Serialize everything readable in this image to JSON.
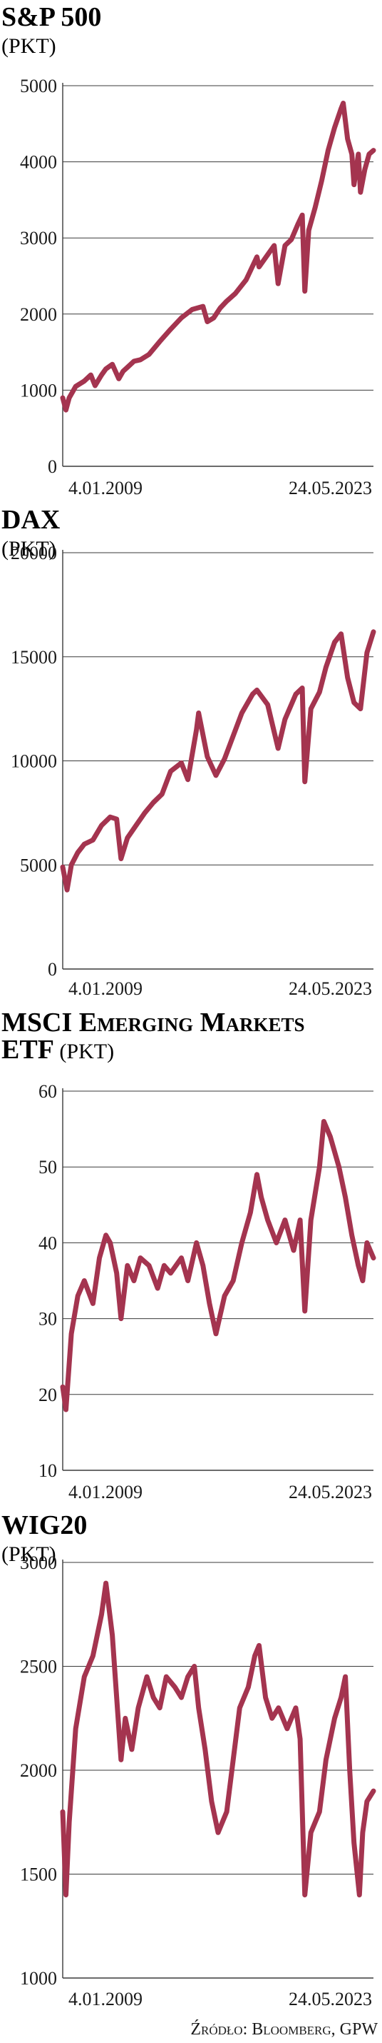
{
  "source": "Źródło: Bloomberg, GPW",
  "chart_data": [
    {
      "type": "line",
      "title": "S&P 500",
      "unit": "(PKT)",
      "x_start": "4.01.2009",
      "x_end": "24.05.2023",
      "x_range": [
        2009.0,
        2023.4
      ],
      "ylim": [
        0,
        5000
      ],
      "yticks": [
        0,
        1000,
        2000,
        3000,
        4000,
        5000
      ],
      "grid": true,
      "color": "#a4344f",
      "series": [
        {
          "x": [
            2009.0,
            2009.15,
            2009.3,
            2009.6,
            2010.0,
            2010.3,
            2010.5,
            2010.8,
            2011.0,
            2011.3,
            2011.6,
            2011.8,
            2012.0,
            2012.3,
            2012.6,
            2013.0,
            2013.5,
            2014.0,
            2014.5,
            2015.0,
            2015.5,
            2015.7,
            2016.0,
            2016.3,
            2016.6,
            2017.0,
            2017.5,
            2018.0,
            2018.1,
            2018.5,
            2018.8,
            2018.98,
            2019.3,
            2019.6,
            2019.9,
            2020.1,
            2020.22,
            2020.4,
            2020.7,
            2021.0,
            2021.3,
            2021.6,
            2021.9,
            2022.0,
            2022.2,
            2022.4,
            2022.5,
            2022.7,
            2022.8,
            2023.0,
            2023.2,
            2023.4
          ],
          "y": [
            900,
            740,
            900,
            1050,
            1120,
            1200,
            1060,
            1200,
            1280,
            1340,
            1150,
            1250,
            1300,
            1380,
            1400,
            1470,
            1640,
            1800,
            1950,
            2060,
            2100,
            1900,
            1950,
            2080,
            2170,
            2270,
            2450,
            2750,
            2620,
            2780,
            2900,
            2400,
            2900,
            2980,
            3180,
            3300,
            2300,
            3100,
            3400,
            3750,
            4150,
            4450,
            4700,
            4770,
            4300,
            4100,
            3700,
            4100,
            3600,
            3900,
            4100,
            4150
          ]
        }
      ]
    },
    {
      "type": "line",
      "title": "DAX",
      "unit": "(PKT)",
      "x_start": "4.01.2009",
      "x_end": "24.05.2023",
      "x_range": [
        2009.0,
        2023.4
      ],
      "ylim": [
        0,
        20000
      ],
      "yticks": [
        0,
        5000,
        10000,
        15000,
        20000
      ],
      "grid": true,
      "color": "#a4344f",
      "series": [
        {
          "x": [
            2009.0,
            2009.2,
            2009.4,
            2009.7,
            2010.0,
            2010.4,
            2010.8,
            2011.2,
            2011.5,
            2011.7,
            2012.0,
            2012.4,
            2012.8,
            2013.2,
            2013.6,
            2014.0,
            2014.5,
            2014.8,
            2015.2,
            2015.3,
            2015.7,
            2016.1,
            2016.5,
            2016.9,
            2017.3,
            2017.8,
            2018.0,
            2018.5,
            2018.98,
            2019.3,
            2019.8,
            2020.1,
            2020.22,
            2020.5,
            2020.9,
            2021.2,
            2021.6,
            2021.9,
            2022.2,
            2022.5,
            2022.8,
            2023.1,
            2023.4
          ],
          "y": [
            4900,
            3800,
            5000,
            5600,
            6000,
            6200,
            6900,
            7300,
            7200,
            5300,
            6300,
            6900,
            7500,
            8000,
            8400,
            9500,
            9900,
            9100,
            11500,
            12300,
            10200,
            9300,
            10100,
            11200,
            12300,
            13200,
            13400,
            12700,
            10600,
            12000,
            13200,
            13500,
            9000,
            12500,
            13300,
            14500,
            15700,
            16100,
            14000,
            12800,
            12500,
            15200,
            16200
          ]
        }
      ]
    },
    {
      "type": "line",
      "title_main": "MSCI Emerging Markets",
      "title_second": "ETF",
      "unit": "(PKT)",
      "x_start": "4.01.2009",
      "x_end": "24.05.2023",
      "x_range": [
        2009.0,
        2023.4
      ],
      "ylim": [
        10,
        60
      ],
      "yticks": [
        10,
        20,
        30,
        40,
        50,
        60
      ],
      "grid": true,
      "color": "#a4344f",
      "series": [
        {
          "x": [
            2009.0,
            2009.15,
            2009.4,
            2009.7,
            2010.0,
            2010.4,
            2010.7,
            2011.0,
            2011.2,
            2011.5,
            2011.7,
            2012.0,
            2012.3,
            2012.6,
            2013.0,
            2013.4,
            2013.7,
            2014.0,
            2014.5,
            2014.8,
            2015.2,
            2015.5,
            2015.8,
            2016.1,
            2016.5,
            2016.9,
            2017.3,
            2017.7,
            2018.0,
            2018.2,
            2018.5,
            2018.9,
            2019.3,
            2019.7,
            2020.0,
            2020.22,
            2020.5,
            2020.9,
            2021.1,
            2021.4,
            2021.8,
            2022.1,
            2022.4,
            2022.7,
            2022.9,
            2023.1,
            2023.4
          ],
          "y": [
            21,
            18,
            28,
            33,
            35,
            32,
            38,
            41,
            40,
            36,
            30,
            37,
            35,
            38,
            37,
            34,
            37,
            36,
            38,
            35,
            40,
            37,
            32,
            28,
            33,
            35,
            40,
            44,
            49,
            46,
            43,
            40,
            43,
            39,
            43,
            31,
            43,
            50,
            56,
            54,
            50,
            46,
            41,
            37,
            35,
            40,
            38
          ]
        }
      ]
    },
    {
      "type": "line",
      "title": "WIG20",
      "unit": "(PKT)",
      "x_start": "4.01.2009",
      "x_end": "24.05.2023",
      "x_range": [
        2009.0,
        2023.4
      ],
      "ylim": [
        1000,
        3000
      ],
      "yticks": [
        1000,
        1500,
        2000,
        2500,
        3000
      ],
      "grid": true,
      "color": "#a4344f",
      "series": [
        {
          "x": [
            2009.0,
            2009.15,
            2009.3,
            2009.6,
            2010.0,
            2010.4,
            2010.8,
            2011.0,
            2011.3,
            2011.5,
            2011.7,
            2011.9,
            2012.2,
            2012.5,
            2012.9,
            2013.2,
            2013.5,
            2013.8,
            2014.2,
            2014.5,
            2014.8,
            2015.1,
            2015.3,
            2015.6,
            2015.9,
            2016.2,
            2016.6,
            2016.9,
            2017.2,
            2017.6,
            2017.9,
            2018.1,
            2018.4,
            2018.7,
            2019.0,
            2019.4,
            2019.8,
            2020.0,
            2020.22,
            2020.5,
            2020.9,
            2021.2,
            2021.6,
            2021.9,
            2022.1,
            2022.3,
            2022.5,
            2022.75,
            2022.9,
            2023.1,
            2023.4
          ],
          "y": [
            1800,
            1400,
            1750,
            2200,
            2450,
            2550,
            2750,
            2900,
            2650,
            2350,
            2050,
            2250,
            2100,
            2300,
            2450,
            2350,
            2300,
            2450,
            2400,
            2350,
            2450,
            2500,
            2300,
            2100,
            1850,
            1700,
            1800,
            2050,
            2300,
            2400,
            2550,
            2600,
            2350,
            2250,
            2300,
            2200,
            2300,
            2150,
            1400,
            1700,
            1800,
            2050,
            2250,
            2350,
            2450,
            2000,
            1650,
            1400,
            1700,
            1850,
            1900
          ]
        }
      ]
    }
  ]
}
